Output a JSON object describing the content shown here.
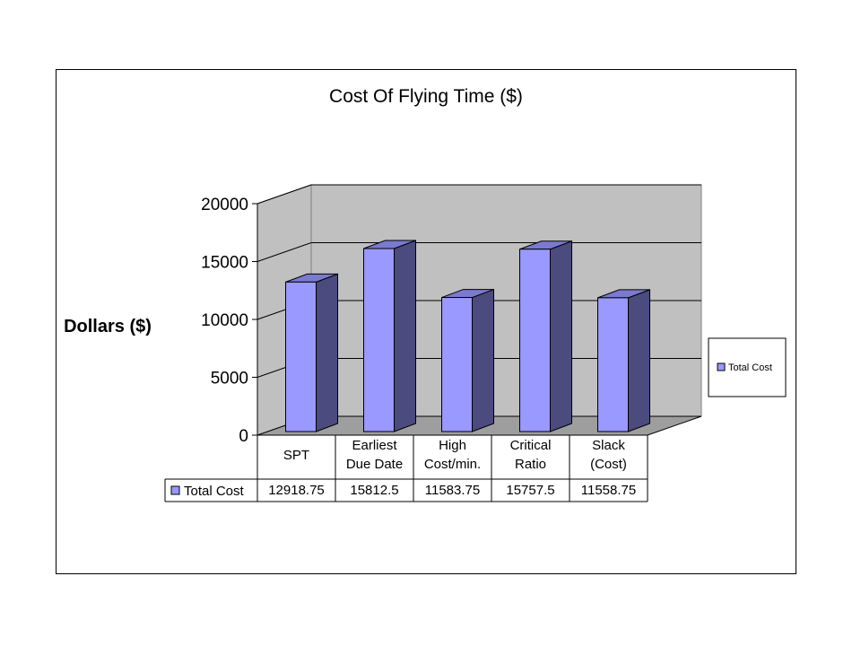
{
  "chart_data": {
    "type": "bar",
    "title": "Cost Of Flying Time ($)",
    "ylabel": "Dollars ($)",
    "xlabel": "",
    "categories": [
      [
        "SPT"
      ],
      [
        "Earliest",
        "Due Date"
      ],
      [
        "High",
        "Cost/min."
      ],
      [
        "Critical",
        "Ratio"
      ],
      [
        "Slack",
        "(Cost)"
      ]
    ],
    "series": [
      {
        "name": "Total Cost",
        "values": [
          12918.75,
          15812.5,
          11583.75,
          15757.5,
          11558.75
        ],
        "value_labels": [
          "12918.75",
          "15812.5",
          "11583.75",
          "15757.5",
          "11558.75"
        ],
        "color": "#9999FF"
      }
    ],
    "ylim": [
      0,
      20000
    ],
    "yticks": [
      0,
      5000,
      10000,
      15000,
      20000
    ],
    "grid": true,
    "legend": "right",
    "data_table": true,
    "colors": {
      "bar_front": "#9999FF",
      "bar_side": "#4B4B80",
      "bar_top": "#7A7AD0",
      "wall": "#C0C0C0",
      "floor": "#9E9E9E"
    }
  }
}
